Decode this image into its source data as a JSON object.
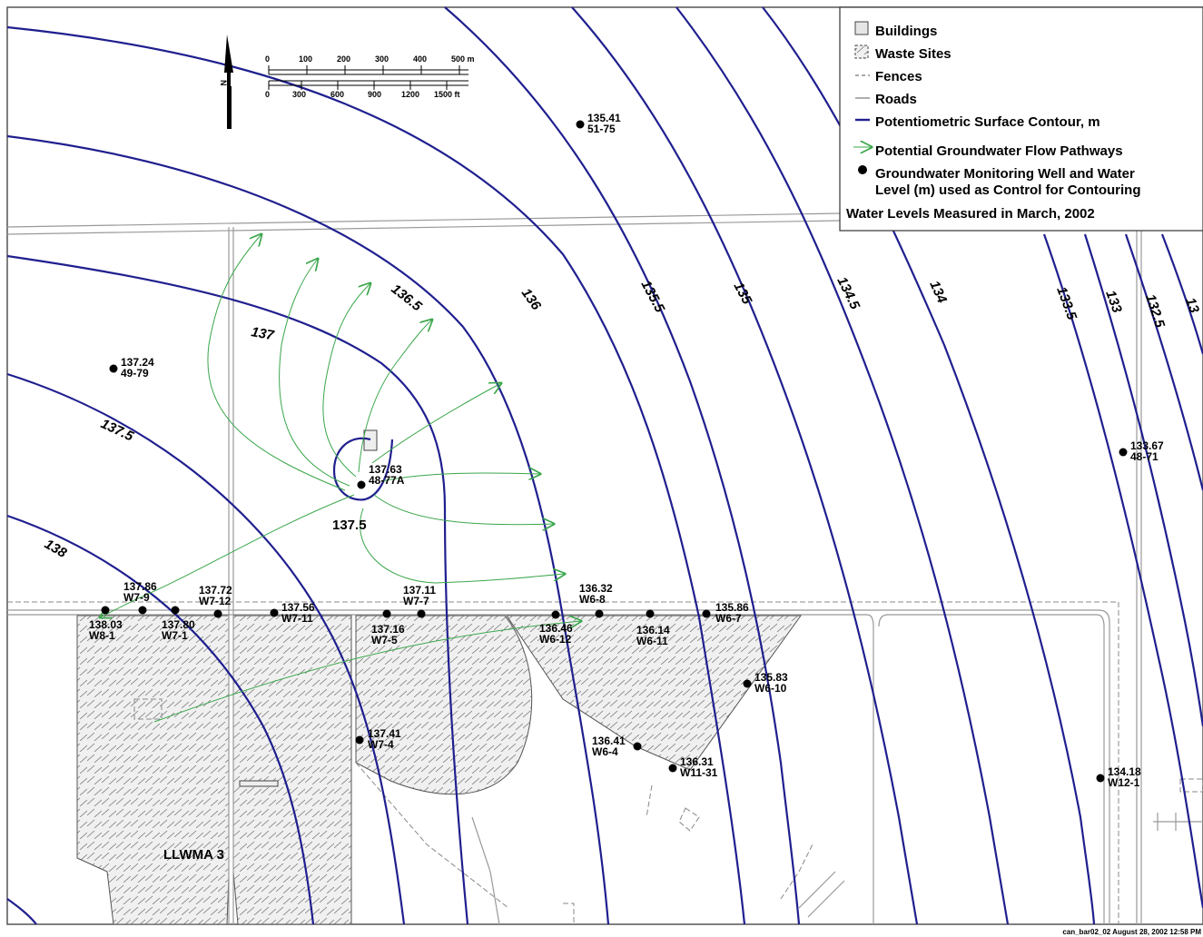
{
  "legend": {
    "buildings": "Buildings",
    "waste_sites": "Waste Sites",
    "fences": "Fences",
    "roads": "Roads",
    "contour": "Potentiometric Surface Contour, m",
    "flow": "Potential Groundwater Flow Pathways",
    "well_line1": "Groundwater Monitoring Well and Water",
    "well_line2": "Level (m) used as Control for Contouring",
    "measured": "Water Levels Measured in March, 2002"
  },
  "scale_bar": {
    "north_label": "N",
    "meters": [
      "0",
      "100",
      "200",
      "300",
      "400",
      "500 m"
    ],
    "feet": [
      "0",
      "300",
      "600",
      "900",
      "1200",
      "1500 ft"
    ]
  },
  "contour_labels": [
    "138",
    "137.5",
    "137",
    "136.5",
    "136",
    "135.5",
    "135",
    "134.5",
    "134",
    "133.5",
    "133",
    "132.5",
    "13",
    "137.5"
  ],
  "area_label": "LLWMA 3",
  "wells": [
    {
      "value": "135.41",
      "id": "51-75"
    },
    {
      "value": "137.24",
      "id": "49-79"
    },
    {
      "value": "137.63",
      "id": "48-77A"
    },
    {
      "value": "133.67",
      "id": "48-71"
    },
    {
      "value": "137.86",
      "id": "W7-9"
    },
    {
      "value": "137.72",
      "id": "W7-12"
    },
    {
      "value": "138.03",
      "id": "W8-1"
    },
    {
      "value": "137.80",
      "id": "W7-1"
    },
    {
      "value": "137.56",
      "id": "W7-11"
    },
    {
      "value": "137.11",
      "id": "W7-7"
    },
    {
      "value": "137.16",
      "id": "W7-5"
    },
    {
      "value": "136.32",
      "id": "W6-8"
    },
    {
      "value": "136.46",
      "id": "W6-12"
    },
    {
      "value": "136.14",
      "id": "W6-11"
    },
    {
      "value": "135.86",
      "id": "W6-7"
    },
    {
      "value": "135.83",
      "id": "W6-10"
    },
    {
      "value": "137.41",
      "id": "W7-4"
    },
    {
      "value": "136.41",
      "id": "W6-4"
    },
    {
      "value": "136.31",
      "id": "W11-31"
    },
    {
      "value": "134.18",
      "id": "W12-1"
    }
  ],
  "footer": "can_bar02_02 August 28, 2002 12:58 PM",
  "colors": {
    "contour": "#1f1f8f",
    "flow": "#3aa64a",
    "fence": "#888888",
    "road": "#999999",
    "waste_fill": "#e8e8e8"
  }
}
